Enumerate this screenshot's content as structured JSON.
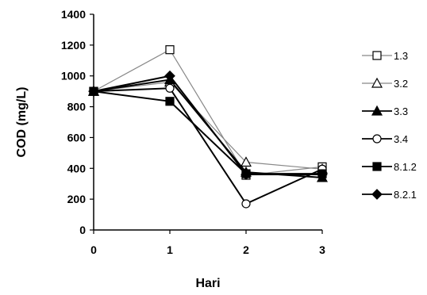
{
  "chart_data": {
    "type": "line",
    "xlabel": "Hari",
    "ylabel": "COD (mg/L)",
    "x": [
      0,
      1,
      2,
      3
    ],
    "xlim": [
      0,
      3
    ],
    "ylim": [
      0,
      1400
    ],
    "yticks": [
      0,
      200,
      400,
      600,
      800,
      1000,
      1200,
      1400
    ],
    "xticks": [
      0,
      1,
      2,
      3
    ],
    "grid": false,
    "legend_position": "right",
    "series": [
      {
        "name": "1.3",
        "marker": "square-open",
        "line_color": "#888888",
        "values": [
          900,
          1170,
          355,
          410
        ]
      },
      {
        "name": "3.2",
        "marker": "triangle-open",
        "line_color": "#888888",
        "values": [
          900,
          960,
          440,
          395
        ]
      },
      {
        "name": "3.3",
        "marker": "triangle-filled",
        "line_color": "#000000",
        "values": [
          900,
          975,
          375,
          340
        ]
      },
      {
        "name": "3.4",
        "marker": "circle-open",
        "line_color": "#000000",
        "values": [
          900,
          920,
          170,
          395
        ]
      },
      {
        "name": "8.1.2",
        "marker": "square-filled",
        "line_color": "#000000",
        "values": [
          900,
          835,
          365,
          365
        ]
      },
      {
        "name": "8.2.1",
        "marker": "diamond-filled",
        "line_color": "#000000",
        "values": [
          900,
          1000,
          360,
          360
        ]
      }
    ]
  }
}
